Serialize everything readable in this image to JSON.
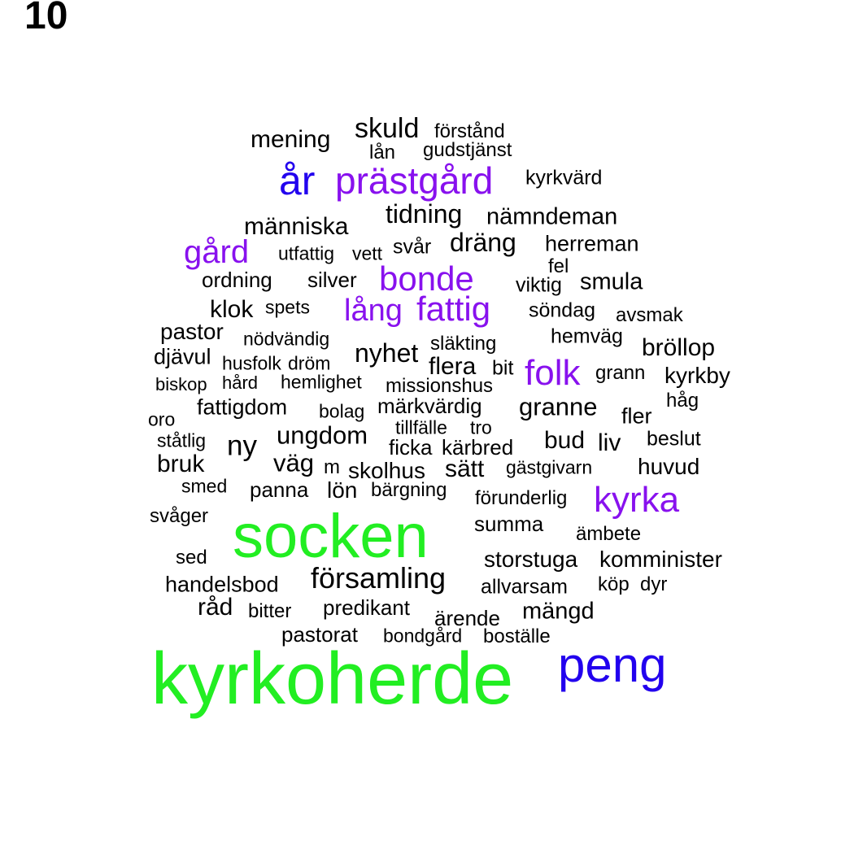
{
  "label": "10",
  "colors": {
    "high": "#22ee22",
    "mid": "#2200ee",
    "low": "#8811ee",
    "base": "#000000"
  },
  "words": [
    {
      "text": "kyrkoherde",
      "tier": "high"
    },
    {
      "text": "socken",
      "tier": "high"
    },
    {
      "text": "peng",
      "tier": "mid"
    },
    {
      "text": "år",
      "tier": "mid"
    },
    {
      "text": "prästgård",
      "tier": "low"
    },
    {
      "text": "kyrka",
      "tier": "low"
    },
    {
      "text": "folk",
      "tier": "low"
    },
    {
      "text": "fattig",
      "tier": "low"
    },
    {
      "text": "bonde",
      "tier": "low"
    },
    {
      "text": "gård",
      "tier": "low"
    },
    {
      "text": "lång",
      "tier": "low"
    },
    {
      "text": "mening",
      "tier": "base"
    },
    {
      "text": "skuld",
      "tier": "base"
    },
    {
      "text": "förstånd",
      "tier": "base"
    },
    {
      "text": "lån",
      "tier": "base"
    },
    {
      "text": "gudstjänst",
      "tier": "base"
    },
    {
      "text": "kyrkvärd",
      "tier": "base"
    },
    {
      "text": "tidning",
      "tier": "base"
    },
    {
      "text": "nämndeman",
      "tier": "base"
    },
    {
      "text": "människa",
      "tier": "base"
    },
    {
      "text": "dräng",
      "tier": "base"
    },
    {
      "text": "herreman",
      "tier": "base"
    },
    {
      "text": "utfattig",
      "tier": "base"
    },
    {
      "text": "vett",
      "tier": "base"
    },
    {
      "text": "svår",
      "tier": "base"
    },
    {
      "text": "fel",
      "tier": "base"
    },
    {
      "text": "ordning",
      "tier": "base"
    },
    {
      "text": "silver",
      "tier": "base"
    },
    {
      "text": "viktig",
      "tier": "base"
    },
    {
      "text": "smula",
      "tier": "base"
    },
    {
      "text": "klok",
      "tier": "base"
    },
    {
      "text": "spets",
      "tier": "base"
    },
    {
      "text": "söndag",
      "tier": "base"
    },
    {
      "text": "avsmak",
      "tier": "base"
    },
    {
      "text": "pastor",
      "tier": "base"
    },
    {
      "text": "nödvändig",
      "tier": "base"
    },
    {
      "text": "släkting",
      "tier": "base"
    },
    {
      "text": "hemväg",
      "tier": "base"
    },
    {
      "text": "bröllop",
      "tier": "base"
    },
    {
      "text": "djävul",
      "tier": "base"
    },
    {
      "text": "husfolk",
      "tier": "base"
    },
    {
      "text": "dröm",
      "tier": "base"
    },
    {
      "text": "nyhet",
      "tier": "base"
    },
    {
      "text": "flera",
      "tier": "base"
    },
    {
      "text": "bit",
      "tier": "base"
    },
    {
      "text": "grann",
      "tier": "base"
    },
    {
      "text": "kyrkby",
      "tier": "base"
    },
    {
      "text": "biskop",
      "tier": "base"
    },
    {
      "text": "hård",
      "tier": "base"
    },
    {
      "text": "hemlighet",
      "tier": "base"
    },
    {
      "text": "missionshus",
      "tier": "base"
    },
    {
      "text": "håg",
      "tier": "base"
    },
    {
      "text": "fattigdom",
      "tier": "base"
    },
    {
      "text": "bolag",
      "tier": "base"
    },
    {
      "text": "märkvärdig",
      "tier": "base"
    },
    {
      "text": "granne",
      "tier": "base"
    },
    {
      "text": "fler",
      "tier": "base"
    },
    {
      "text": "oro",
      "tier": "base"
    },
    {
      "text": "tillfälle",
      "tier": "base"
    },
    {
      "text": "tro",
      "tier": "base"
    },
    {
      "text": "ungdom",
      "tier": "base"
    },
    {
      "text": "bud",
      "tier": "base"
    },
    {
      "text": "liv",
      "tier": "base"
    },
    {
      "text": "beslut",
      "tier": "base"
    },
    {
      "text": "ståtlig",
      "tier": "base"
    },
    {
      "text": "ny",
      "tier": "base"
    },
    {
      "text": "ficka",
      "tier": "base"
    },
    {
      "text": "kärbred",
      "tier": "base"
    },
    {
      "text": "bruk",
      "tier": "base"
    },
    {
      "text": "väg",
      "tier": "base"
    },
    {
      "text": "m",
      "tier": "base"
    },
    {
      "text": "skolhus",
      "tier": "base"
    },
    {
      "text": "sätt",
      "tier": "base"
    },
    {
      "text": "gästgivarn",
      "tier": "base"
    },
    {
      "text": "huvud",
      "tier": "base"
    },
    {
      "text": "smed",
      "tier": "base"
    },
    {
      "text": "panna",
      "tier": "base"
    },
    {
      "text": "lön",
      "tier": "base"
    },
    {
      "text": "bärgning",
      "tier": "base"
    },
    {
      "text": "förunderlig",
      "tier": "base"
    },
    {
      "text": "svåger",
      "tier": "base"
    },
    {
      "text": "summa",
      "tier": "base"
    },
    {
      "text": "ämbete",
      "tier": "base"
    },
    {
      "text": "sed",
      "tier": "base"
    },
    {
      "text": "storstuga",
      "tier": "base"
    },
    {
      "text": "komminister",
      "tier": "base"
    },
    {
      "text": "handelsbod",
      "tier": "base"
    },
    {
      "text": "församling",
      "tier": "base"
    },
    {
      "text": "allvarsam",
      "tier": "base"
    },
    {
      "text": "köp",
      "tier": "base"
    },
    {
      "text": "dyr",
      "tier": "base"
    },
    {
      "text": "råd",
      "tier": "base"
    },
    {
      "text": "bitter",
      "tier": "base"
    },
    {
      "text": "predikant",
      "tier": "base"
    },
    {
      "text": "ärende",
      "tier": "base"
    },
    {
      "text": "mängd",
      "tier": "base"
    },
    {
      "text": "pastorat",
      "tier": "base"
    },
    {
      "text": "bondgård",
      "tier": "base"
    },
    {
      "text": "boställe",
      "tier": "base"
    }
  ]
}
